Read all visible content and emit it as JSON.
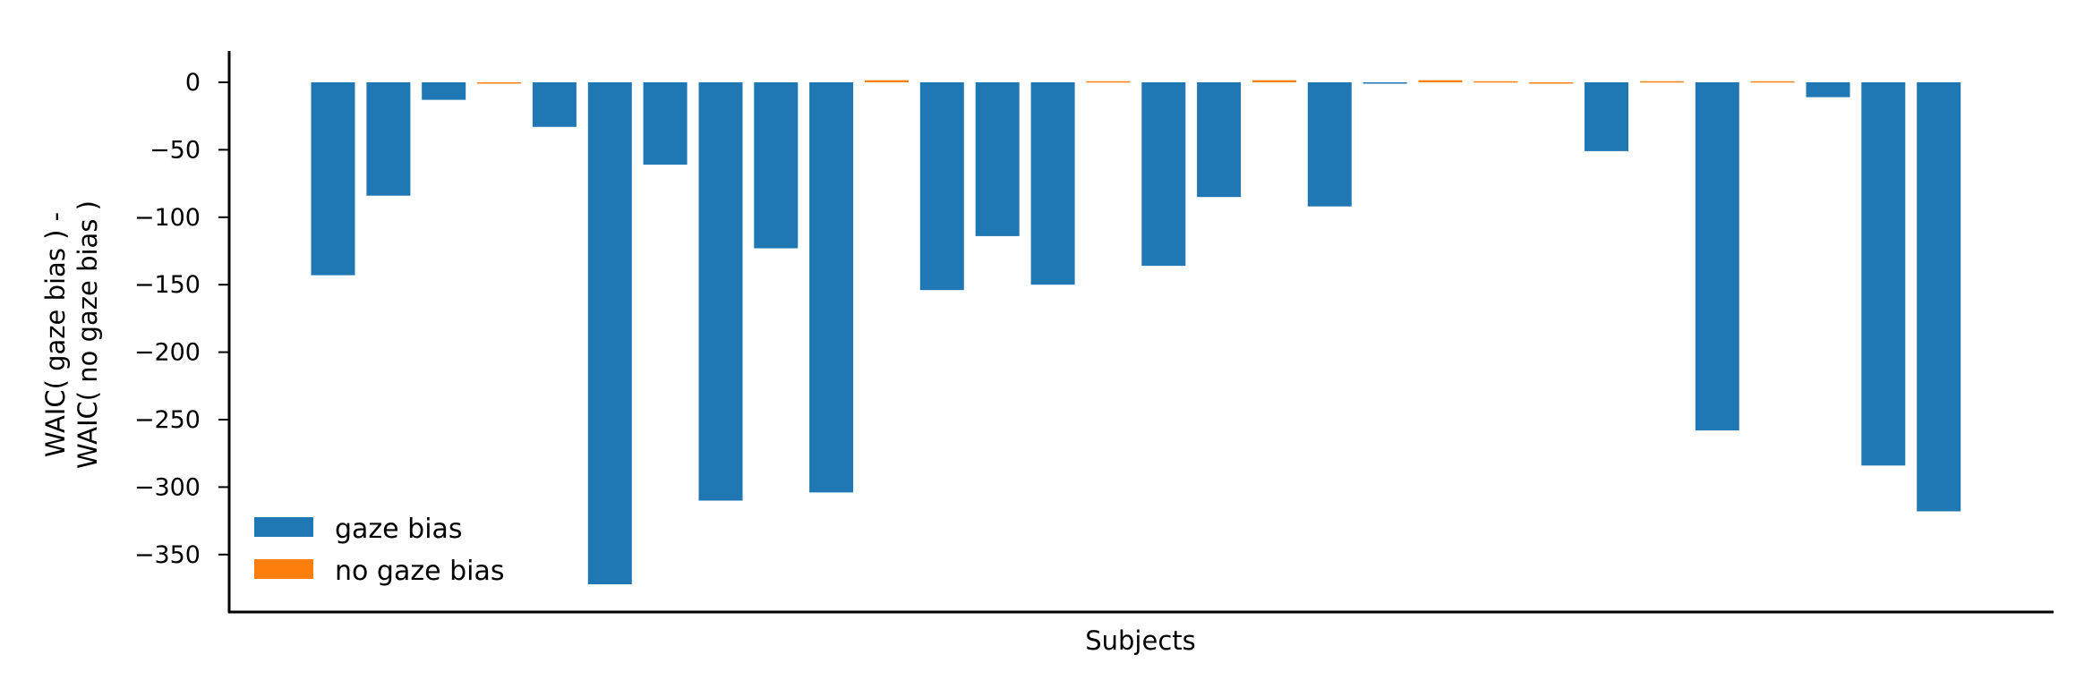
{
  "chart_data": {
    "type": "bar",
    "title": "",
    "xlabel": "Subjects",
    "ylabel_lines": [
      "WAIC( gaze bias ) -",
      "WAIC( no gaze bias )"
    ],
    "ylim": [
      -392,
      22
    ],
    "yticks": [
      0,
      -50,
      -100,
      -150,
      -200,
      -250,
      -300,
      -350
    ],
    "ytick_labels": [
      "0",
      "−50",
      "−100",
      "−150",
      "−200",
      "−250",
      "−300",
      "−350"
    ],
    "xticks_shown": false,
    "grid": false,
    "legend": {
      "position": "lower-left",
      "entries": [
        {
          "label": "gaze bias",
          "color": "#1f77b4"
        },
        {
          "label": "no gaze bias",
          "color": "#ff7f0e"
        }
      ]
    },
    "colors": {
      "gaze bias": "#1f77b4",
      "no gaze bias": "#ff7f0e"
    },
    "bars": [
      {
        "value": -143,
        "group": "gaze bias"
      },
      {
        "value": -84,
        "group": "gaze bias"
      },
      {
        "value": -13,
        "group": "gaze bias"
      },
      {
        "value": -0.5,
        "group": "no gaze bias"
      },
      {
        "value": -33,
        "group": "gaze bias"
      },
      {
        "value": -372,
        "group": "gaze bias"
      },
      {
        "value": -61,
        "group": "gaze bias"
      },
      {
        "value": -310,
        "group": "gaze bias"
      },
      {
        "value": -123,
        "group": "gaze bias"
      },
      {
        "value": -304,
        "group": "gaze bias"
      },
      {
        "value": 1.5,
        "group": "no gaze bias"
      },
      {
        "value": -154,
        "group": "gaze bias"
      },
      {
        "value": -114,
        "group": "gaze bias"
      },
      {
        "value": -150,
        "group": "gaze bias"
      },
      {
        "value": 0.8,
        "group": "no gaze bias"
      },
      {
        "value": -136,
        "group": "gaze bias"
      },
      {
        "value": -85,
        "group": "gaze bias"
      },
      {
        "value": 1.5,
        "group": "no gaze bias"
      },
      {
        "value": -92,
        "group": "gaze bias"
      },
      {
        "value": -0.8,
        "group": "gaze bias"
      },
      {
        "value": 1.5,
        "group": "no gaze bias"
      },
      {
        "value": 0.8,
        "group": "no gaze bias"
      },
      {
        "value": -0.4,
        "group": "no gaze bias"
      },
      {
        "value": -51,
        "group": "gaze bias"
      },
      {
        "value": 0.8,
        "group": "no gaze bias"
      },
      {
        "value": -258,
        "group": "gaze bias"
      },
      {
        "value": 0.8,
        "group": "no gaze bias"
      },
      {
        "value": -11,
        "group": "gaze bias"
      },
      {
        "value": -284,
        "group": "gaze bias"
      },
      {
        "value": -318,
        "group": "gaze bias"
      }
    ]
  }
}
